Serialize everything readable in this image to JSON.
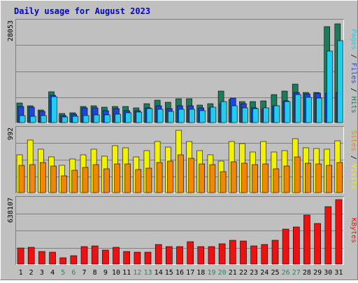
{
  "chart_data": [
    {
      "type": "bar",
      "panel": "pages-files-hits",
      "title": "Daily usage for August 2023",
      "categories": [
        "1",
        "2",
        "3",
        "4",
        "5",
        "6",
        "7",
        "8",
        "9",
        "10",
        "11",
        "12",
        "13",
        "14",
        "15",
        "16",
        "17",
        "18",
        "19",
        "20",
        "21",
        "22",
        "23",
        "24",
        "25",
        "26",
        "27",
        "28",
        "29",
        "30",
        "31"
      ],
      "weekend_days": [
        "5",
        "6",
        "12",
        "13",
        "19",
        "20",
        "26",
        "27"
      ],
      "ymax_label": "28053",
      "ylim": [
        0,
        28053
      ],
      "grid": true,
      "series": [
        {
          "name": "Hits",
          "color": "#1f7a5c",
          "values": [
            5400,
            4800,
            3600,
            8600,
            2600,
            2800,
            4600,
            4800,
            4300,
            4600,
            4600,
            4200,
            5300,
            6200,
            5700,
            6700,
            6700,
            5000,
            5300,
            8800,
            6400,
            5900,
            5800,
            6000,
            7800,
            8800,
            10700,
            8400,
            8400,
            26800,
            27600
          ]
        },
        {
          "name": "Files",
          "color": "#2244dd",
          "values": [
            4500,
            4400,
            3100,
            7600,
            2000,
            2300,
            4200,
            4200,
            3300,
            4000,
            3400,
            3400,
            4200,
            4800,
            4000,
            4800,
            4800,
            4100,
            4200,
            5200,
            6800,
            5200,
            4100,
            3800,
            4700,
            6100,
            8400,
            8100,
            8300,
            8300,
            8500
          ]
        },
        {
          "name": "Pages",
          "color": "#22ccee",
          "values": [
            2000,
            1800,
            1900,
            7300,
            1600,
            1800,
            2000,
            2200,
            2200,
            2400,
            2800,
            3000,
            4000,
            3800,
            3100,
            3700,
            3700,
            3400,
            4400,
            5800,
            4800,
            4200,
            3900,
            4100,
            4700,
            5800,
            7800,
            7000,
            6800,
            20000,
            23000
          ]
        }
      ]
    },
    {
      "type": "bar",
      "panel": "sites-visits",
      "ymax_label": "992",
      "ylim": [
        0,
        992
      ],
      "grid": true,
      "series": [
        {
          "name": "Visits",
          "color": "#f2f200",
          "values": [
            600,
            830,
            680,
            560,
            430,
            530,
            600,
            680,
            570,
            740,
            700,
            560,
            660,
            800,
            720,
            980,
            800,
            660,
            600,
            500,
            800,
            770,
            640,
            810,
            640,
            660,
            850,
            700,
            690,
            680,
            820
          ]
        },
        {
          "name": "Sites",
          "color": "#ee8800",
          "values": [
            430,
            440,
            470,
            420,
            270,
            350,
            400,
            440,
            380,
            450,
            450,
            360,
            390,
            470,
            500,
            600,
            540,
            450,
            440,
            330,
            490,
            460,
            440,
            450,
            380,
            420,
            560,
            460,
            450,
            430,
            470
          ]
        }
      ]
    },
    {
      "type": "bar",
      "panel": "kbytes",
      "ymax_label": "638107",
      "ylim": [
        0,
        638107
      ],
      "grid": true,
      "series": [
        {
          "name": "KBytes",
          "color": "#ee1111",
          "values": [
            162000,
            166000,
            122000,
            121000,
            61000,
            83000,
            172000,
            181000,
            136000,
            166000,
            124000,
            119000,
            119000,
            194000,
            170000,
            172000,
            224000,
            175000,
            176000,
            201000,
            238000,
            230000,
            181000,
            194000,
            237000,
            349000,
            368000,
            488000,
            403000,
            568000,
            638107
          ]
        }
      ]
    }
  ],
  "legends": {
    "top": [
      {
        "text": "Pages",
        "color": "#22ccee"
      },
      {
        "text": " / ",
        "color": "#000000"
      },
      {
        "text": "Files",
        "color": "#2244dd"
      },
      {
        "text": " / ",
        "color": "#000000"
      },
      {
        "text": "Hits",
        "color": "#1f7a5c"
      }
    ],
    "middle": [
      {
        "text": "Sites",
        "color": "#ee8800"
      },
      {
        "text": " / ",
        "color": "#000000"
      },
      {
        "text": "Visits",
        "color": "#f2f200"
      }
    ],
    "bottom": [
      {
        "text": "KBytes",
        "color": "#ee1111"
      }
    ]
  },
  "colors": {
    "background": "#c0c0c0",
    "border_light": "#ffffff",
    "border_dark": "#808080",
    "title": "#0000cc",
    "weekday_label": "#000000",
    "weekend_label": "#228866",
    "gridline": "#808080"
  }
}
